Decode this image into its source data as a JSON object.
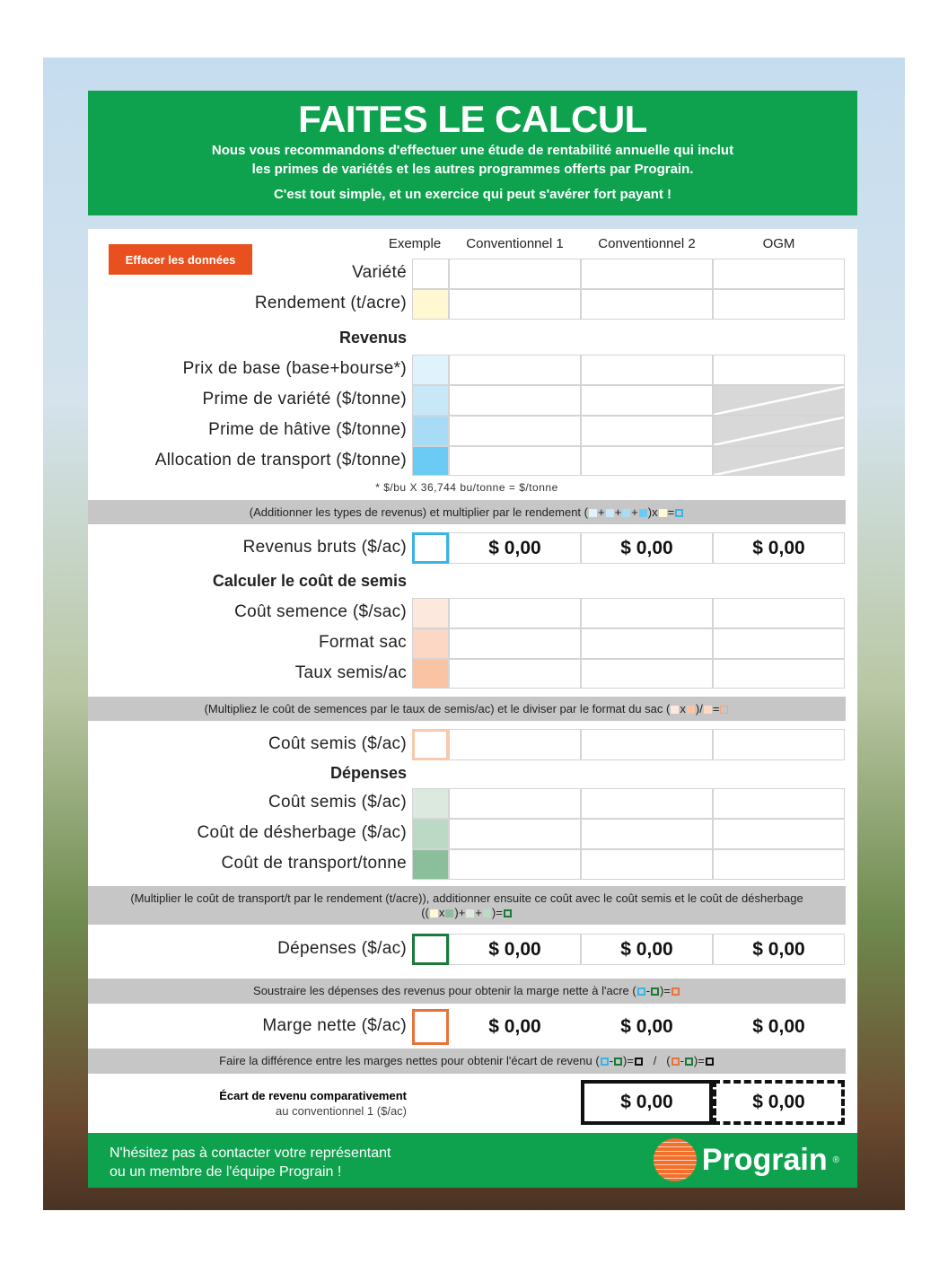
{
  "header": {
    "title": "FAITES LE CALCUL",
    "line1": "Nous vous recommandons d'effectuer une étude de rentabilité annuelle qui inclut",
    "line2": "les primes de variétés et les autres programmes offerts par Prograin.",
    "line3": "C'est tout simple, et un exercice qui peut s'avérer fort payant !"
  },
  "clear_button": "Effacer les données",
  "columns": [
    "Exemple",
    "Conventionnel 1",
    "Conventionnel 2",
    "OGM"
  ],
  "rows": {
    "variete": "Variété",
    "rendement": "Rendement (t/acre)",
    "revenus": "Revenus",
    "prix": "Prix de base (base+bourse*)",
    "prime_var": "Prime de variété ($/tonne)",
    "prime_hat": "Prime de hâtive ($/tonne)",
    "allocation": "Allocation de transport ($/tonne)",
    "footnote": "* $/bu X 36,744 bu/tonne = $/tonne",
    "revenus_bruts": "Revenus bruts ($/ac)",
    "calc_semis": "Calculer le coût de semis",
    "cout_semence": "Coût semence ($/sac)",
    "format_sac": "Format sac",
    "taux_semis": "Taux semis/ac",
    "cout_semis": "Coût semis ($/ac)",
    "depenses_h": "Dépenses",
    "cout_semis2": "Coût semis ($/ac)",
    "desherbage": "Coût de désherbage ($/ac)",
    "transport": "Coût de transport/tonne",
    "depenses": "Dépenses ($/ac)",
    "marge": "Marge nette ($/ac)",
    "ecart1": "Écart de revenu comparativement",
    "ecart2": "au conventionnel 1 ($/ac)"
  },
  "instructions": {
    "revenus": "(Additionner les types de revenus) et multiplier par le rendement (",
    "semis": "(Multipliez le coût de semences par le taux de semis/ac) et le diviser par le format du sac (",
    "depenses": "(Multiplier le coût de transport/t par le rendement (t/acre)), additionner ensuite ce coût avec le coût semis et le coût de désherbage",
    "marge": "Soustraire les dépenses des revenus pour obtenir la marge nette à l'acre (",
    "ecart": "Faire la différence entre les marges nettes pour obtenir l'écart de revenu ("
  },
  "values": {
    "revenus_bruts": [
      "$ 0,00",
      "$ 0,00",
      "$ 0,00"
    ],
    "depenses": [
      "$ 0,00",
      "$ 0,00",
      "$ 0,00"
    ],
    "marge": [
      "$ 0,00",
      "$ 0,00",
      "$ 0,00"
    ],
    "ecart": [
      "$ 0,00",
      "$ 0,00"
    ]
  },
  "footer": {
    "line1": "N'hésitez pas à contacter votre représentant",
    "line2": "ou un membre de l'équipe Prograin !",
    "brand": "Prograin",
    "reg": "®"
  },
  "colors": {
    "green": "#0ea24f",
    "orange": "#e8511f",
    "blue": "#3ab4e6",
    "dark_green": "#1a7a3a"
  }
}
